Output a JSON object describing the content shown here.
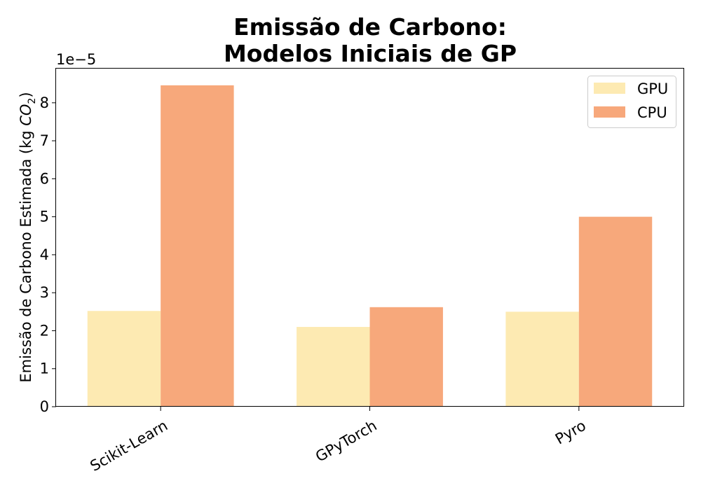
{
  "chart_data": {
    "type": "bar",
    "title_lines": [
      "Emissão de Carbono:",
      "Modelos Iniciais de GP"
    ],
    "xlabel": "",
    "ylabel_prefix": "Emissão de Carbono Estimada (kg ",
    "ylabel_co": "CO",
    "ylabel_sub": "2",
    "ylabel_suffix": ")",
    "y_offset_text": "1e−5",
    "categories": [
      "Scikit-Learn",
      "GPyTorch",
      "Pyro"
    ],
    "series": [
      {
        "name": "GPU",
        "color": "#fdeab2",
        "values": [
          2.52,
          2.1,
          2.5
        ]
      },
      {
        "name": "CPU",
        "color": "#f7a87b",
        "values": [
          8.46,
          2.62,
          5.0
        ]
      }
    ],
    "ylim": [
      0,
      8.9
    ],
    "yticks": [
      0,
      1,
      2,
      3,
      4,
      5,
      6,
      7,
      8
    ],
    "y_unit_scale": "1e-5",
    "legend_position": "top-right",
    "grid": false
  }
}
